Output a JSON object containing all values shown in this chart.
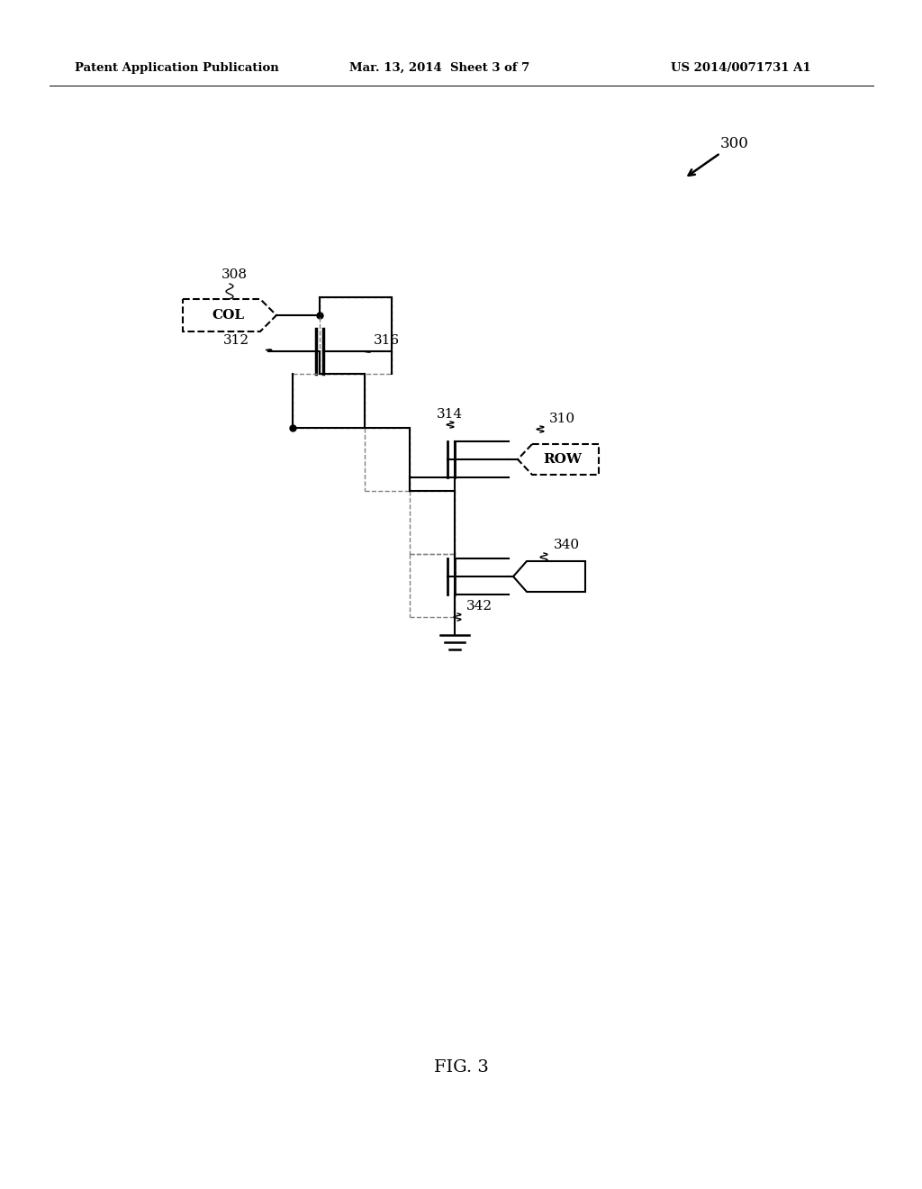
{
  "bg_color": "#ffffff",
  "header_left": "Patent Application Publication",
  "header_mid": "Mar. 13, 2014  Sheet 3 of 7",
  "header_right": "US 2014/0071731 A1",
  "fig_label": "FIG. 3",
  "ref_300": "300",
  "ref_308": "308",
  "ref_312": "312",
  "ref_316": "316",
  "ref_314": "314",
  "ref_310": "310",
  "ref_340": "340",
  "ref_342": "342",
  "col_label": "COL",
  "row_label": "ROW"
}
